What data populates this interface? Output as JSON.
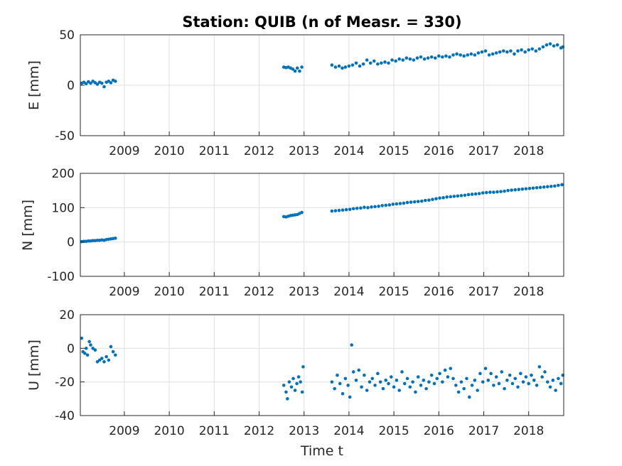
{
  "chart_data": {
    "type": "scatter",
    "title": "Station: QUIB (n of Measr. = 330)",
    "xlabel": "Time t",
    "color": "#0072bd",
    "grid": true,
    "xlim": [
      2008.02,
      2018.78
    ],
    "xticks": [
      2009,
      2010,
      2011,
      2012,
      2013,
      2014,
      2015,
      2016,
      2017,
      2018
    ],
    "panels": [
      {
        "name": "E",
        "ylabel": "E [mm]",
        "ylim": [
          -50,
          50
        ],
        "yticks": [
          -50,
          0,
          50
        ],
        "points": [
          [
            2008.05,
            2
          ],
          [
            2008.1,
            3
          ],
          [
            2008.15,
            1.5
          ],
          [
            2008.2,
            3.5
          ],
          [
            2008.25,
            2
          ],
          [
            2008.3,
            4
          ],
          [
            2008.35,
            2.5
          ],
          [
            2008.4,
            1
          ],
          [
            2008.45,
            3
          ],
          [
            2008.5,
            2
          ],
          [
            2008.55,
            -1.5
          ],
          [
            2008.6,
            3
          ],
          [
            2008.65,
            4
          ],
          [
            2008.7,
            2.5
          ],
          [
            2008.75,
            5
          ],
          [
            2008.8,
            4
          ],
          [
            2012.55,
            18
          ],
          [
            2012.6,
            17.5
          ],
          [
            2012.65,
            18
          ],
          [
            2012.7,
            17
          ],
          [
            2012.75,
            16
          ],
          [
            2012.8,
            14
          ],
          [
            2012.85,
            17
          ],
          [
            2012.9,
            14
          ],
          [
            2012.95,
            18
          ],
          [
            2013.62,
            20
          ],
          [
            2013.7,
            18
          ],
          [
            2013.78,
            19
          ],
          [
            2013.85,
            17
          ],
          [
            2013.92,
            18
          ],
          [
            2014,
            19
          ],
          [
            2014.08,
            20
          ],
          [
            2014.16,
            22
          ],
          [
            2014.24,
            19
          ],
          [
            2014.32,
            21
          ],
          [
            2014.4,
            25
          ],
          [
            2014.48,
            22
          ],
          [
            2014.56,
            24
          ],
          [
            2014.64,
            21
          ],
          [
            2014.72,
            22
          ],
          [
            2014.8,
            23
          ],
          [
            2014.88,
            22
          ],
          [
            2014.96,
            25
          ],
          [
            2015.04,
            24
          ],
          [
            2015.12,
            26
          ],
          [
            2015.2,
            25
          ],
          [
            2015.28,
            27
          ],
          [
            2015.36,
            26
          ],
          [
            2015.44,
            25
          ],
          [
            2015.52,
            27
          ],
          [
            2015.6,
            28
          ],
          [
            2015.68,
            26
          ],
          [
            2015.76,
            27
          ],
          [
            2015.84,
            28
          ],
          [
            2015.92,
            27
          ],
          [
            2016,
            29
          ],
          [
            2016.08,
            28
          ],
          [
            2016.16,
            29
          ],
          [
            2016.24,
            28
          ],
          [
            2016.32,
            30
          ],
          [
            2016.4,
            31
          ],
          [
            2016.48,
            30
          ],
          [
            2016.56,
            29
          ],
          [
            2016.64,
            30
          ],
          [
            2016.72,
            31
          ],
          [
            2016.8,
            30
          ],
          [
            2016.88,
            32
          ],
          [
            2016.96,
            33
          ],
          [
            2017.04,
            34
          ],
          [
            2017.12,
            30
          ],
          [
            2017.2,
            31
          ],
          [
            2017.28,
            32
          ],
          [
            2017.36,
            33
          ],
          [
            2017.44,
            34
          ],
          [
            2017.52,
            33
          ],
          [
            2017.6,
            34
          ],
          [
            2017.68,
            31
          ],
          [
            2017.76,
            34
          ],
          [
            2017.84,
            35
          ],
          [
            2017.92,
            33
          ],
          [
            2018,
            35
          ],
          [
            2018.08,
            36
          ],
          [
            2018.16,
            34
          ],
          [
            2018.24,
            36
          ],
          [
            2018.32,
            38
          ],
          [
            2018.4,
            40
          ],
          [
            2018.48,
            41
          ],
          [
            2018.56,
            39
          ],
          [
            2018.64,
            40
          ],
          [
            2018.72,
            37
          ],
          [
            2018.76,
            38
          ]
        ]
      },
      {
        "name": "N",
        "ylabel": "N [mm]",
        "ylim": [
          -100,
          200
        ],
        "yticks": [
          -100,
          0,
          100,
          200
        ],
        "points": [
          [
            2008.05,
            1
          ],
          [
            2008.1,
            2
          ],
          [
            2008.15,
            2
          ],
          [
            2008.2,
            3
          ],
          [
            2008.25,
            3
          ],
          [
            2008.3,
            4
          ],
          [
            2008.35,
            4
          ],
          [
            2008.4,
            5
          ],
          [
            2008.45,
            5
          ],
          [
            2008.5,
            6
          ],
          [
            2008.55,
            5
          ],
          [
            2008.6,
            7
          ],
          [
            2008.65,
            8
          ],
          [
            2008.7,
            9
          ],
          [
            2008.75,
            10
          ],
          [
            2008.8,
            11
          ],
          [
            2012.55,
            74
          ],
          [
            2012.6,
            73
          ],
          [
            2012.65,
            75
          ],
          [
            2012.7,
            77
          ],
          [
            2012.75,
            78
          ],
          [
            2012.8,
            79
          ],
          [
            2012.85,
            80
          ],
          [
            2012.9,
            83
          ],
          [
            2012.95,
            86
          ],
          [
            2013.62,
            90
          ],
          [
            2013.7,
            91
          ],
          [
            2013.78,
            92
          ],
          [
            2013.86,
            93
          ],
          [
            2013.94,
            94
          ],
          [
            2014.02,
            95
          ],
          [
            2014.1,
            97
          ],
          [
            2014.18,
            98
          ],
          [
            2014.26,
            99
          ],
          [
            2014.34,
            101
          ],
          [
            2014.42,
            100
          ],
          [
            2014.5,
            102
          ],
          [
            2014.58,
            103
          ],
          [
            2014.66,
            104
          ],
          [
            2014.74,
            106
          ],
          [
            2014.82,
            107
          ],
          [
            2014.9,
            108
          ],
          [
            2014.98,
            110
          ],
          [
            2015.06,
            111
          ],
          [
            2015.14,
            112
          ],
          [
            2015.22,
            113
          ],
          [
            2015.3,
            115
          ],
          [
            2015.38,
            116
          ],
          [
            2015.46,
            117
          ],
          [
            2015.54,
            118
          ],
          [
            2015.62,
            119
          ],
          [
            2015.7,
            121
          ],
          [
            2015.78,
            122
          ],
          [
            2015.86,
            124
          ],
          [
            2015.94,
            126
          ],
          [
            2016.02,
            128
          ],
          [
            2016.1,
            129
          ],
          [
            2016.18,
            131
          ],
          [
            2016.26,
            132
          ],
          [
            2016.34,
            133
          ],
          [
            2016.42,
            134
          ],
          [
            2016.5,
            135
          ],
          [
            2016.58,
            136
          ],
          [
            2016.66,
            138
          ],
          [
            2016.74,
            139
          ],
          [
            2016.82,
            140
          ],
          [
            2016.9,
            141
          ],
          [
            2016.98,
            143
          ],
          [
            2017.06,
            144
          ],
          [
            2017.14,
            145
          ],
          [
            2017.22,
            145
          ],
          [
            2017.3,
            146
          ],
          [
            2017.38,
            147
          ],
          [
            2017.46,
            148
          ],
          [
            2017.54,
            150
          ],
          [
            2017.62,
            151
          ],
          [
            2017.7,
            152
          ],
          [
            2017.78,
            153
          ],
          [
            2017.86,
            154
          ],
          [
            2017.94,
            155
          ],
          [
            2018.02,
            156
          ],
          [
            2018.1,
            157
          ],
          [
            2018.18,
            158
          ],
          [
            2018.26,
            159
          ],
          [
            2018.34,
            160
          ],
          [
            2018.42,
            161
          ],
          [
            2018.5,
            162
          ],
          [
            2018.58,
            163
          ],
          [
            2018.66,
            165
          ],
          [
            2018.74,
            167
          ]
        ]
      },
      {
        "name": "U",
        "ylabel": "U [mm]",
        "ylim": [
          -40,
          20
        ],
        "yticks": [
          -40,
          -20,
          0,
          20
        ],
        "points": [
          [
            2008.05,
            6
          ],
          [
            2008.08,
            -2
          ],
          [
            2008.12,
            -3
          ],
          [
            2008.15,
            0
          ],
          [
            2008.18,
            -4
          ],
          [
            2008.22,
            4
          ],
          [
            2008.25,
            2
          ],
          [
            2008.3,
            0
          ],
          [
            2008.35,
            -1
          ],
          [
            2008.4,
            -8
          ],
          [
            2008.45,
            -7
          ],
          [
            2008.5,
            -6
          ],
          [
            2008.55,
            -8
          ],
          [
            2008.6,
            -5
          ],
          [
            2008.65,
            -7
          ],
          [
            2008.7,
            1
          ],
          [
            2008.75,
            -2
          ],
          [
            2008.8,
            -4
          ],
          [
            2012.55,
            -22
          ],
          [
            2012.6,
            -26
          ],
          [
            2012.63,
            -30
          ],
          [
            2012.67,
            -20
          ],
          [
            2012.72,
            -23
          ],
          [
            2012.76,
            -18
          ],
          [
            2012.8,
            -25
          ],
          [
            2012.84,
            -21
          ],
          [
            2012.88,
            -17
          ],
          [
            2012.92,
            -20
          ],
          [
            2012.96,
            -26
          ],
          [
            2012.98,
            -11
          ],
          [
            2013.62,
            -20
          ],
          [
            2013.68,
            -24
          ],
          [
            2013.74,
            -16
          ],
          [
            2013.8,
            -21
          ],
          [
            2013.86,
            -27
          ],
          [
            2013.92,
            -18
          ],
          [
            2013.98,
            -22
          ],
          [
            2014.02,
            -29
          ],
          [
            2014.06,
            2
          ],
          [
            2014.1,
            -14
          ],
          [
            2014.16,
            -19
          ],
          [
            2014.22,
            -13
          ],
          [
            2014.28,
            -23
          ],
          [
            2014.34,
            -16
          ],
          [
            2014.4,
            -25
          ],
          [
            2014.46,
            -20
          ],
          [
            2014.52,
            -18
          ],
          [
            2014.58,
            -22
          ],
          [
            2014.64,
            -15
          ],
          [
            2014.7,
            -20
          ],
          [
            2014.76,
            -24
          ],
          [
            2014.82,
            -19
          ],
          [
            2014.88,
            -21
          ],
          [
            2014.94,
            -17
          ],
          [
            2015,
            -23
          ],
          [
            2015.06,
            -19
          ],
          [
            2015.12,
            -25
          ],
          [
            2015.18,
            -14
          ],
          [
            2015.24,
            -21
          ],
          [
            2015.3,
            -18
          ],
          [
            2015.36,
            -23
          ],
          [
            2015.42,
            -20
          ],
          [
            2015.48,
            -26
          ],
          [
            2015.54,
            -17
          ],
          [
            2015.6,
            -22
          ],
          [
            2015.66,
            -19
          ],
          [
            2015.72,
            -24
          ],
          [
            2015.78,
            -20
          ],
          [
            2015.84,
            -16
          ],
          [
            2015.9,
            -21
          ],
          [
            2015.96,
            -18
          ],
          [
            2016.02,
            -15
          ],
          [
            2016.08,
            -20
          ],
          [
            2016.14,
            -13
          ],
          [
            2016.2,
            -17
          ],
          [
            2016.26,
            -12
          ],
          [
            2016.32,
            -18
          ],
          [
            2016.38,
            -22
          ],
          [
            2016.44,
            -26
          ],
          [
            2016.5,
            -20
          ],
          [
            2016.56,
            -24
          ],
          [
            2016.62,
            -18
          ],
          [
            2016.68,
            -29
          ],
          [
            2016.74,
            -22
          ],
          [
            2016.8,
            -19
          ],
          [
            2016.86,
            -25
          ],
          [
            2016.92,
            -15
          ],
          [
            2016.98,
            -20
          ],
          [
            2017.04,
            -12
          ],
          [
            2017.1,
            -19
          ],
          [
            2017.16,
            -15
          ],
          [
            2017.22,
            -22
          ],
          [
            2017.28,
            -17
          ],
          [
            2017.34,
            -21
          ],
          [
            2017.4,
            -14
          ],
          [
            2017.46,
            -24
          ],
          [
            2017.52,
            -19
          ],
          [
            2017.58,
            -16
          ],
          [
            2017.64,
            -21
          ],
          [
            2017.7,
            -18
          ],
          [
            2017.76,
            -23
          ],
          [
            2017.82,
            -15
          ],
          [
            2017.88,
            -20
          ],
          [
            2017.94,
            -17
          ],
          [
            2018,
            -21
          ],
          [
            2018.06,
            -16
          ],
          [
            2018.12,
            -19
          ],
          [
            2018.18,
            -22
          ],
          [
            2018.24,
            -11
          ],
          [
            2018.3,
            -17
          ],
          [
            2018.36,
            -14
          ],
          [
            2018.42,
            -20
          ],
          [
            2018.48,
            -23
          ],
          [
            2018.54,
            -19
          ],
          [
            2018.6,
            -25
          ],
          [
            2018.66,
            -18
          ],
          [
            2018.72,
            -21
          ],
          [
            2018.76,
            -16
          ]
        ]
      }
    ]
  }
}
